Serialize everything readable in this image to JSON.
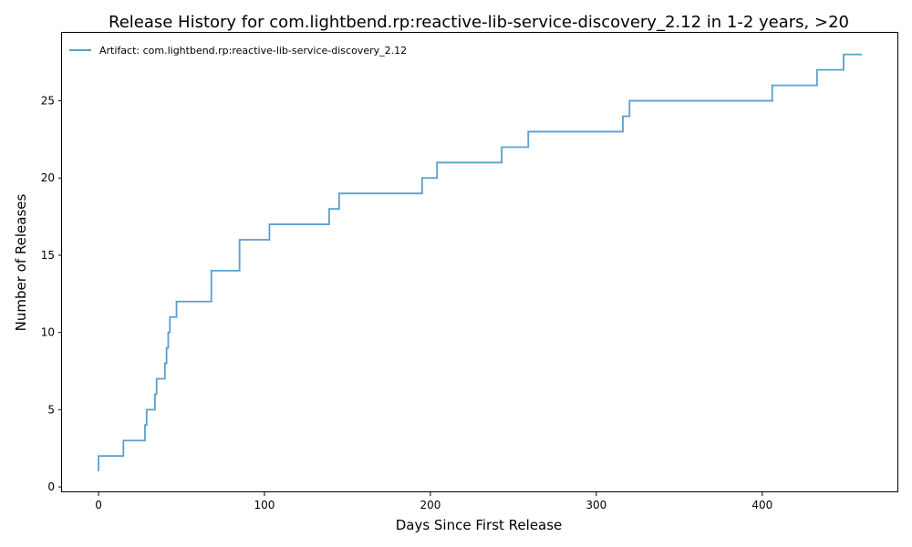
{
  "chart_data": {
    "type": "line",
    "title": "Release History for com.lightbend.rp:reactive-lib-service-discovery_2.12 in 1-2 years, >20",
    "xlabel": "Days Since First Release",
    "ylabel": "Number of Releases",
    "xlim": [
      -22,
      482
    ],
    "ylim": [
      -0.35,
      29.4
    ],
    "xticks": [
      0,
      100,
      200,
      300,
      400
    ],
    "yticks": [
      0,
      5,
      10,
      15,
      20,
      25
    ],
    "grid": false,
    "legend_position": "top-left",
    "series": [
      {
        "name": "Artifact: com.lightbend.rp:reactive-lib-service-discovery_2.12",
        "color": "#5a9fcc",
        "step": "post",
        "x": [
          0,
          0,
          15,
          28,
          29,
          34,
          35,
          40,
          41,
          42,
          43,
          47,
          68,
          85,
          103,
          139,
          145,
          195,
          204,
          243,
          259,
          316,
          320,
          406,
          433,
          449,
          460
        ],
        "y": [
          1,
          2,
          3,
          4,
          5,
          6,
          7,
          8,
          9,
          10,
          11,
          12,
          14,
          16,
          17,
          18,
          19,
          20,
          21,
          22,
          23,
          24,
          25,
          26,
          27,
          28,
          28
        ]
      }
    ]
  }
}
